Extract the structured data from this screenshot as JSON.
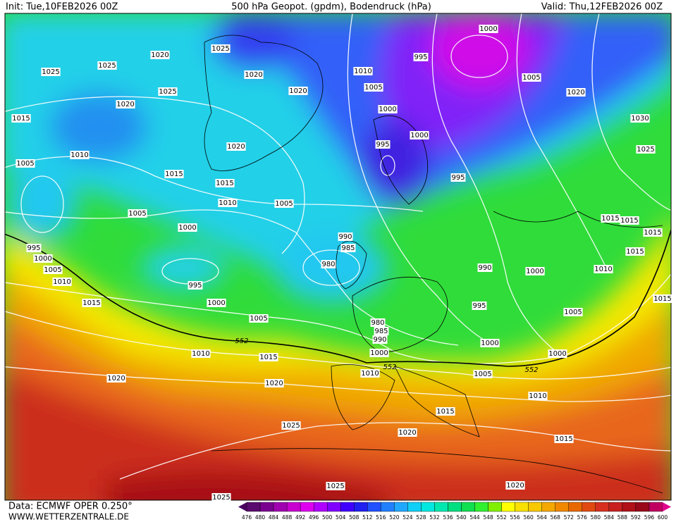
{
  "header": {
    "init": "Init: Tue,10FEB2026 00Z",
    "title": "500 hPa Geopot. (gpdm), Bodendruck (hPa)",
    "valid": "Valid: Thu,12FEB2026 00Z"
  },
  "isobar_labels": [
    "1020",
    "1025",
    "1025",
    "1025",
    "1020",
    "1025",
    "1020",
    "1020",
    "1015",
    "1010",
    "1005",
    "1020",
    "1015",
    "1015",
    "1010",
    "1005",
    "1005",
    "1000",
    "995",
    "1000",
    "1005",
    "1010",
    "995",
    "1000",
    "1015",
    "1005",
    "990",
    "985",
    "980",
    "980",
    "985",
    "990",
    "1000",
    "1010",
    "1015",
    "1010",
    "1020",
    "1020",
    "1025",
    "1020",
    "1015",
    "1025",
    "1025",
    "1020",
    "1015",
    "1010",
    "1005",
    "1000",
    "1000",
    "1005",
    "995",
    "990",
    "1000",
    "1010",
    "1015",
    "1015",
    "1015",
    "1015",
    "1015",
    "995",
    "1000",
    "995",
    "1000",
    "1005",
    "1010",
    "995",
    "1000",
    "1005",
    "1020",
    "1030",
    "1025"
  ],
  "geopot_labels": [
    "552",
    "552",
    "552"
  ],
  "footer": {
    "source": "Data: ECMWF OPER 0.250°",
    "site": "WWW.WETTERZENTRALE.DE"
  },
  "colorbar": {
    "levels": [
      476,
      480,
      484,
      488,
      492,
      496,
      500,
      504,
      508,
      512,
      516,
      520,
      524,
      528,
      532,
      536,
      540,
      544,
      548,
      552,
      556,
      560,
      564,
      568,
      572,
      576,
      580,
      584,
      588,
      592,
      596,
      600
    ]
  }
}
